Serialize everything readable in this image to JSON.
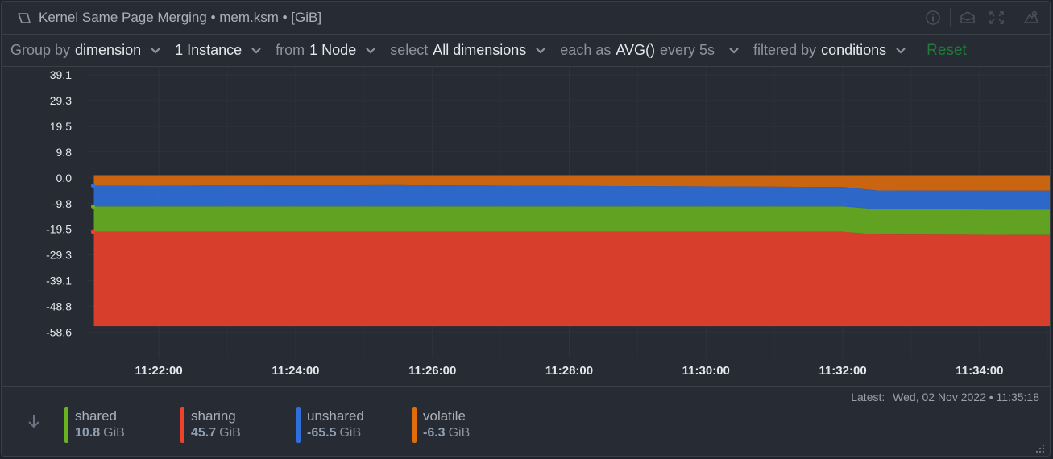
{
  "header": {
    "title": "Kernel Same Page Merging • mem.ksm • [GiB]",
    "actions": [
      "info-icon",
      "dashboard-icon",
      "fullscreen-icon",
      "alert-icon"
    ]
  },
  "toolbar": {
    "group_by_label": "Group by",
    "group_by_value": "dimension",
    "instances_value": "1 Instance",
    "from_label": "from",
    "nodes_value": "1 Node",
    "select_label": "select",
    "dimensions_value": "All dimensions",
    "each_as_label": "each as",
    "aggregation_value": "AVG()",
    "every_label": "every 5s",
    "filtered_by_label": "filtered by",
    "conditions_value": "conditions",
    "reset_label": "Reset"
  },
  "chart_data": {
    "type": "area",
    "stacked": true,
    "y_ticks": [
      "39.1",
      "29.3",
      "19.5",
      "9.8",
      "0.0",
      "-9.8",
      "-19.5",
      "-29.3",
      "-39.1",
      "-48.8",
      "-58.6"
    ],
    "x_ticks": [
      "11:22:00",
      "11:24:00",
      "11:26:00",
      "11:28:00",
      "11:30:00",
      "11:32:00",
      "11:34:00"
    ],
    "x_minutes": [
      0,
      2,
      4,
      6,
      8,
      10,
      12
    ],
    "x_range": [
      -1.05,
      13.05
    ],
    "y_range": [
      -68.3,
      39.1
    ],
    "grid": true,
    "series_x": [
      -0.95,
      3.5,
      10,
      10.5,
      13.05
    ],
    "series": [
      {
        "name": "volatile",
        "color": "#e06c0c",
        "lower": [
          -3.0,
          -2.8,
          -3.5,
          -4.8,
          -4.9
        ],
        "upper": [
          1.0,
          1.0,
          1.0,
          1.0,
          1.0
        ]
      },
      {
        "name": "unshared",
        "color": "#2f6fdc",
        "lower": [
          -10.9,
          -10.9,
          -10.9,
          -11.9,
          -12.1
        ],
        "upper": [
          -3.0,
          -2.8,
          -3.5,
          -4.8,
          -4.9
        ]
      },
      {
        "name": "shared",
        "color": "#6ab320",
        "lower": [
          -20.5,
          -20.5,
          -20.5,
          -21.5,
          -21.7
        ],
        "upper": [
          -10.9,
          -10.9,
          -10.9,
          -11.9,
          -12.1
        ]
      },
      {
        "name": "sharing",
        "color": "#f0412b",
        "lower": [
          -56.4,
          -56.4,
          -56.4,
          -56.4,
          -56.4
        ],
        "upper": [
          -20.5,
          -20.5,
          -20.5,
          -21.5,
          -21.7
        ]
      }
    ]
  },
  "legend": {
    "latest_label": "Latest:",
    "latest_value": "Wed, 02 Nov 2022 • 11:35:18",
    "items": [
      {
        "name": "shared",
        "value": "10.8",
        "unit": "GiB",
        "color": "#6ab320"
      },
      {
        "name": "sharing",
        "value": "45.7",
        "unit": "GiB",
        "color": "#f0412b"
      },
      {
        "name": "unshared",
        "value": "-65.5",
        "unit": "GiB",
        "color": "#2f6fdc"
      },
      {
        "name": "volatile",
        "value": "-6.3",
        "unit": "GiB",
        "color": "#e06c0c"
      }
    ]
  }
}
